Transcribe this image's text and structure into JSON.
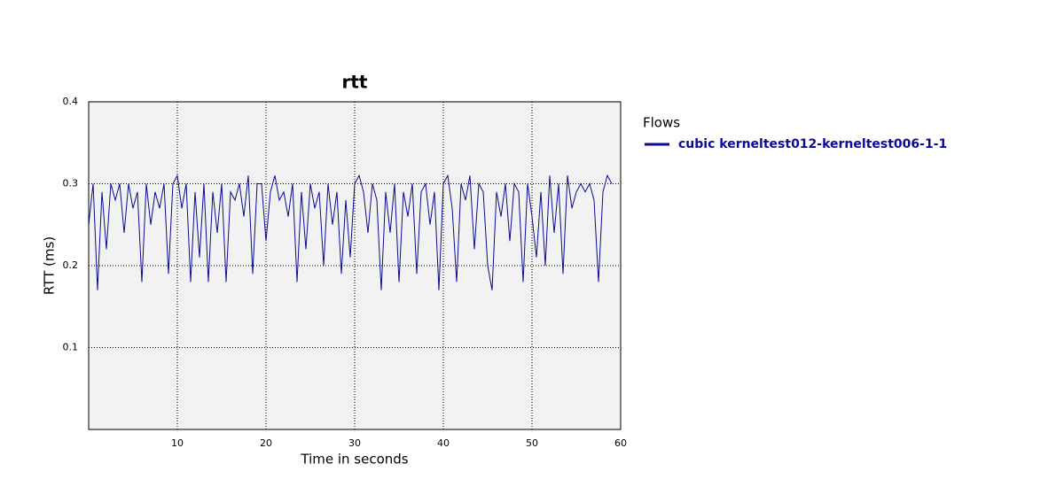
{
  "chart_data": {
    "type": "line",
    "title": "rtt",
    "x_label": "Time in seconds",
    "y_label": "RTT (ms)",
    "legend_title": "Flows",
    "x": [
      0,
      0.5,
      1,
      1.5,
      2,
      2.5,
      3,
      3.5,
      4,
      4.5,
      5,
      5.5,
      6,
      6.5,
      7,
      7.5,
      8,
      8.5,
      9,
      9.5,
      10,
      10.5,
      11,
      11.5,
      12,
      12.5,
      13,
      13.5,
      14,
      14.5,
      15,
      15.5,
      16,
      16.5,
      17,
      17.5,
      18,
      18.5,
      19,
      19.5,
      20,
      20.5,
      21,
      21.5,
      22,
      22.5,
      23,
      23.5,
      24,
      24.5,
      25,
      25.5,
      26,
      26.5,
      27,
      27.5,
      28,
      28.5,
      29,
      29.5,
      30,
      30.5,
      31,
      31.5,
      32,
      32.5,
      33,
      33.5,
      34,
      34.5,
      35,
      35.5,
      36,
      36.5,
      37,
      37.5,
      38,
      38.5,
      39,
      39.5,
      40,
      40.5,
      41,
      41.5,
      42,
      42.5,
      43,
      43.5,
      44,
      44.5,
      45,
      45.5,
      46,
      46.5,
      47,
      47.5,
      48,
      48.5,
      49,
      49.5,
      50,
      50.5,
      51,
      51.5,
      52,
      52.5,
      53,
      53.5,
      54,
      54.5,
      55,
      55.5,
      56,
      56.5,
      57,
      57.5,
      58,
      58.5,
      59
    ],
    "series": [
      {
        "name": "cubic kerneltest012-kerneltest006-1-1",
        "color": "#0a0a96",
        "values": [
          0.25,
          0.3,
          0.17,
          0.29,
          0.22,
          0.3,
          0.28,
          0.3,
          0.24,
          0.3,
          0.27,
          0.29,
          0.18,
          0.3,
          0.25,
          0.29,
          0.27,
          0.3,
          0.19,
          0.3,
          0.31,
          0.27,
          0.3,
          0.18,
          0.29,
          0.21,
          0.3,
          0.18,
          0.29,
          0.24,
          0.3,
          0.18,
          0.29,
          0.28,
          0.3,
          0.26,
          0.31,
          0.19,
          0.3,
          0.3,
          0.23,
          0.29,
          0.31,
          0.28,
          0.29,
          0.26,
          0.3,
          0.18,
          0.29,
          0.22,
          0.3,
          0.27,
          0.29,
          0.2,
          0.3,
          0.25,
          0.29,
          0.19,
          0.28,
          0.21,
          0.3,
          0.31,
          0.29,
          0.24,
          0.3,
          0.28,
          0.17,
          0.29,
          0.24,
          0.3,
          0.18,
          0.29,
          0.26,
          0.3,
          0.19,
          0.29,
          0.3,
          0.25,
          0.29,
          0.17,
          0.3,
          0.31,
          0.27,
          0.18,
          0.3,
          0.28,
          0.31,
          0.22,
          0.3,
          0.29,
          0.2,
          0.17,
          0.29,
          0.26,
          0.3,
          0.23,
          0.3,
          0.29,
          0.18,
          0.3,
          0.26,
          0.21,
          0.29,
          0.2,
          0.31,
          0.24,
          0.3,
          0.19,
          0.31,
          0.27,
          0.29,
          0.3,
          0.29,
          0.3,
          0.28,
          0.18,
          0.29,
          0.31,
          0.3
        ]
      }
    ],
    "xlim": [
      0,
      60
    ],
    "ylim": [
      0,
      0.4
    ],
    "xticks": [
      10,
      20,
      30,
      40,
      50,
      60
    ],
    "yticks": [
      0.1,
      0.2,
      0.3,
      0.4
    ],
    "grid": true
  }
}
